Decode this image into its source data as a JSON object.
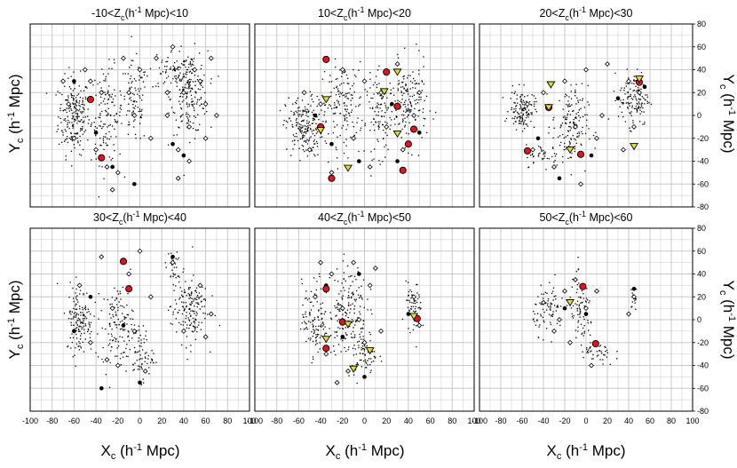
{
  "figure": {
    "x_axis_label": "X",
    "x_axis_label_sub": "c",
    "x_axis_label_unit": " (h",
    "x_axis_label_sup": "-1",
    "x_axis_label_end": " Mpc)",
    "y_axis_label": "Y",
    "y_axis_label_sub": "c",
    "y_axis_label_unit": " (h",
    "y_axis_label_sup": "-1",
    "y_axis_label_end": " Mpc)"
  },
  "colors": {
    "grid": "#c8c8c8",
    "frame": "#000000",
    "dots": "#000000",
    "circle_fill": "#e0141e",
    "triangle_fill": "#e3dc2c",
    "open_marker": "#000000"
  },
  "chart_data": [
    {
      "type": "scatter",
      "title": "-10<Z_c(h^-1 Mpc)<10",
      "title_parts": {
        "pre": "-10<Z",
        "sub": "c",
        "mid": "(h",
        "sup": "-1",
        "post": " Mpc)<10"
      },
      "xlim": [
        -100,
        100
      ],
      "ylim": [
        -80,
        80
      ],
      "xticks": [
        -100,
        -80,
        -60,
        -40,
        -20,
        0,
        20,
        40,
        60,
        80,
        100
      ],
      "yticks": [
        -80,
        -60,
        -40,
        -20,
        0,
        20,
        40,
        60,
        80
      ],
      "dot_clusters": [
        [
          -60,
          0,
          12,
          28,
          220
        ],
        [
          -30,
          0,
          12,
          35,
          130
        ],
        [
          -5,
          10,
          10,
          30,
          90
        ],
        [
          45,
          20,
          14,
          30,
          200
        ],
        [
          30,
          40,
          18,
          15,
          70
        ]
      ],
      "open_markers": [
        [
          -65,
          10
        ],
        [
          -60,
          -20
        ],
        [
          -50,
          40
        ],
        [
          -45,
          30
        ],
        [
          -40,
          -30
        ],
        [
          -35,
          20
        ],
        [
          -30,
          -45
        ],
        [
          -20,
          -50
        ],
        [
          -15,
          50
        ],
        [
          -10,
          20
        ],
        [
          0,
          40
        ],
        [
          10,
          -20
        ],
        [
          15,
          50
        ],
        [
          25,
          0
        ],
        [
          30,
          60
        ],
        [
          35,
          -30
        ],
        [
          40,
          20
        ],
        [
          45,
          -10
        ],
        [
          50,
          40
        ],
        [
          55,
          30
        ],
        [
          60,
          10
        ],
        [
          60,
          -20
        ],
        [
          65,
          50
        ],
        [
          70,
          0
        ],
        [
          -25,
          -65
        ],
        [
          -5,
          0
        ],
        [
          25,
          20
        ],
        [
          45,
          -40
        ],
        [
          35,
          -55
        ],
        [
          -70,
          30
        ]
      ],
      "filled_markers": [
        [
          -60,
          30
        ],
        [
          -40,
          -15
        ],
        [
          -25,
          -45
        ],
        [
          -5,
          -60
        ],
        [
          30,
          -25
        ],
        [
          40,
          -35
        ]
      ],
      "red_circles": [
        [
          -45,
          14
        ],
        [
          -35,
          -37
        ]
      ],
      "yellow_triangles": []
    },
    {
      "type": "scatter",
      "title": "10<Z_c(h^-1 Mpc)<20",
      "title_parts": {
        "pre": "10<Z",
        "sub": "c",
        "mid": "(h",
        "sup": "-1",
        "post": " Mpc)<20"
      },
      "xlim": [
        -100,
        100
      ],
      "ylim": [
        -80,
        80
      ],
      "xticks": [
        -100,
        -80,
        -60,
        -40,
        -20,
        0,
        20,
        40,
        60,
        80,
        100
      ],
      "yticks": [
        -80,
        -60,
        -40,
        -20,
        0,
        20,
        40,
        60,
        80
      ],
      "dot_clusters": [
        [
          -55,
          -10,
          14,
          22,
          200
        ],
        [
          -20,
          10,
          16,
          30,
          150
        ],
        [
          15,
          0,
          12,
          30,
          110
        ],
        [
          40,
          10,
          14,
          30,
          160
        ]
      ],
      "open_markers": [
        [
          -55,
          20
        ],
        [
          -50,
          -30
        ],
        [
          -40,
          10
        ],
        [
          -30,
          -50
        ],
        [
          -20,
          40
        ],
        [
          -10,
          -20
        ],
        [
          0,
          30
        ],
        [
          5,
          -45
        ],
        [
          20,
          -10
        ],
        [
          30,
          45
        ],
        [
          35,
          -30
        ],
        [
          45,
          0
        ],
        [
          50,
          20
        ],
        [
          15,
          20
        ]
      ],
      "filled_markers": [
        [
          -45,
          0
        ],
        [
          -30,
          -25
        ],
        [
          -5,
          -40
        ],
        [
          25,
          10
        ],
        [
          30,
          -40
        ],
        [
          50,
          -15
        ]
      ],
      "red_circles": [
        [
          -35,
          49
        ],
        [
          20,
          38
        ],
        [
          -30,
          -55
        ],
        [
          -40,
          -10
        ],
        [
          30,
          8
        ],
        [
          40,
          -25
        ],
        [
          35,
          -48
        ],
        [
          45,
          -12
        ]
      ],
      "yellow_triangles": [
        [
          -35,
          14
        ],
        [
          -40,
          -13
        ],
        [
          -15,
          -46
        ],
        [
          18,
          21
        ],
        [
          30,
          38
        ],
        [
          30,
          -16
        ]
      ]
    },
    {
      "type": "scatter",
      "title": "20<Z_c(h^-1 Mpc)<30",
      "title_parts": {
        "pre": "20<Z",
        "sub": "c",
        "mid": "(h",
        "sup": "-1",
        "post": " Mpc)<30"
      },
      "xlim": [
        -100,
        100
      ],
      "ylim": [
        -80,
        80
      ],
      "xticks": [
        -100,
        -80,
        -60,
        -40,
        -20,
        0,
        20,
        40,
        60,
        80,
        100
      ],
      "yticks": [
        -80,
        -60,
        -40,
        -20,
        0,
        20,
        40,
        60,
        80
      ],
      "dot_clusters": [
        [
          -60,
          5,
          10,
          14,
          130
        ],
        [
          -15,
          -10,
          14,
          30,
          150
        ],
        [
          45,
          15,
          12,
          20,
          130
        ],
        [
          -40,
          -35,
          14,
          8,
          40
        ]
      ],
      "open_markers": [
        [
          -55,
          10
        ],
        [
          -50,
          -30
        ],
        [
          -40,
          20
        ],
        [
          -30,
          -45
        ],
        [
          -20,
          30
        ],
        [
          -10,
          -10
        ],
        [
          0,
          40
        ],
        [
          10,
          -20
        ],
        [
          20,
          45
        ],
        [
          40,
          30
        ],
        [
          45,
          -10
        ],
        [
          50,
          20
        ],
        [
          -5,
          -60
        ],
        [
          15,
          0
        ],
        [
          35,
          -30
        ]
      ],
      "filled_markers": [
        [
          -45,
          -20
        ],
        [
          -25,
          -55
        ],
        [
          5,
          -35
        ],
        [
          30,
          15
        ],
        [
          55,
          25
        ]
      ],
      "red_circles": [
        [
          -55,
          -31
        ],
        [
          -35,
          7
        ],
        [
          -5,
          -34
        ],
        [
          50,
          29
        ]
      ],
      "yellow_triangles": [
        [
          -33,
          27
        ],
        [
          -35,
          7
        ],
        [
          -15,
          -30
        ],
        [
          50,
          32
        ],
        [
          45,
          -27
        ]
      ]
    },
    {
      "type": "scatter",
      "title": "30<Z_c(h^-1 Mpc)<40",
      "title_parts": {
        "pre": "30<Z",
        "sub": "c",
        "mid": "(h",
        "sup": "-1",
        "post": " Mpc)<40"
      },
      "xlim": [
        -100,
        100
      ],
      "ylim": [
        -80,
        80
      ],
      "xticks": [
        -100,
        -80,
        -60,
        -40,
        -20,
        0,
        20,
        40,
        60,
        80,
        100
      ],
      "yticks": [
        -80,
        -60,
        -40,
        -20,
        0,
        20,
        40,
        60,
        80
      ],
      "dot_clusters": [
        [
          -55,
          0,
          10,
          25,
          150
        ],
        [
          -20,
          -5,
          12,
          30,
          120
        ],
        [
          0,
          -30,
          10,
          20,
          70
        ],
        [
          45,
          10,
          14,
          25,
          170
        ],
        [
          30,
          45,
          6,
          12,
          30
        ]
      ],
      "open_markers": [
        [
          -55,
          30
        ],
        [
          -45,
          -20
        ],
        [
          -35,
          55
        ],
        [
          -25,
          10
        ],
        [
          -20,
          -40
        ],
        [
          -10,
          40
        ],
        [
          -5,
          -10
        ],
        [
          5,
          -45
        ],
        [
          10,
          20
        ],
        [
          30,
          50
        ],
        [
          40,
          -10
        ],
        [
          55,
          30
        ],
        [
          60,
          -15
        ],
        [
          65,
          5
        ],
        [
          -30,
          -35
        ],
        [
          0,
          60
        ]
      ],
      "filled_markers": [
        [
          -60,
          -10
        ],
        [
          -45,
          20
        ],
        [
          -35,
          -60
        ],
        [
          -15,
          -5
        ],
        [
          0,
          -55
        ],
        [
          30,
          55
        ]
      ],
      "red_circles": [
        [
          -15,
          51
        ],
        [
          -10,
          27
        ]
      ],
      "yellow_triangles": []
    },
    {
      "type": "scatter",
      "title": "40<Z_c(h^-1 Mpc)<50",
      "title_parts": {
        "pre": "40<Z",
        "sub": "c",
        "mid": "(h",
        "sup": "-1",
        "post": " Mpc)<50"
      },
      "xlim": [
        -100,
        100
      ],
      "ylim": [
        -80,
        80
      ],
      "xticks": [
        -100,
        -80,
        -60,
        -40,
        -20,
        0,
        20,
        40,
        60,
        80,
        100
      ],
      "yticks": [
        -80,
        -60,
        -40,
        -20,
        0,
        20,
        40,
        60,
        80
      ],
      "dot_clusters": [
        [
          -45,
          0,
          10,
          28,
          120
        ],
        [
          -15,
          10,
          14,
          32,
          170
        ],
        [
          0,
          -30,
          10,
          18,
          70
        ],
        [
          45,
          10,
          6,
          18,
          60
        ]
      ],
      "open_markers": [
        [
          -45,
          20
        ],
        [
          -35,
          -30
        ],
        [
          -30,
          40
        ],
        [
          -20,
          10
        ],
        [
          -15,
          -45
        ],
        [
          -10,
          50
        ],
        [
          0,
          -20
        ],
        [
          5,
          30
        ],
        [
          10,
          45
        ],
        [
          -5,
          0
        ],
        [
          45,
          20
        ],
        [
          50,
          -5
        ],
        [
          -40,
          50
        ],
        [
          15,
          -10
        ],
        [
          -25,
          -55
        ]
      ],
      "filled_markers": [
        [
          -35,
          30
        ],
        [
          -20,
          -15
        ],
        [
          -5,
          40
        ],
        [
          40,
          5
        ],
        [
          0,
          -50
        ]
      ],
      "red_circles": [
        [
          -35,
          27
        ],
        [
          -20,
          -2
        ],
        [
          -35,
          -25
        ],
        [
          48,
          1
        ]
      ],
      "yellow_triangles": [
        [
          -35,
          -17
        ],
        [
          -15,
          -4
        ],
        [
          5,
          -27
        ],
        [
          -10,
          -43
        ],
        [
          45,
          3
        ]
      ]
    },
    {
      "type": "scatter",
      "title": "50<Z_c(h^-1 Mpc)<60",
      "title_parts": {
        "pre": "50<Z",
        "sub": "c",
        "mid": "(h",
        "sup": "-1",
        "post": " Mpc)<60"
      },
      "xlim": [
        -100,
        100
      ],
      "ylim": [
        -80,
        80
      ],
      "xticks": [
        -100,
        -80,
        -60,
        -40,
        -20,
        0,
        20,
        40,
        60,
        80,
        100
      ],
      "yticks": [
        -80,
        -60,
        -40,
        -20,
        0,
        20,
        40,
        60,
        80
      ],
      "dot_clusters": [
        [
          -35,
          10,
          12,
          18,
          80
        ],
        [
          -5,
          5,
          10,
          25,
          80
        ],
        [
          10,
          -30,
          14,
          10,
          40
        ],
        [
          45,
          20,
          3,
          10,
          15
        ]
      ],
      "open_markers": [
        [
          -40,
          15
        ],
        [
          -30,
          -10
        ],
        [
          -20,
          25
        ],
        [
          -10,
          35
        ],
        [
          0,
          10
        ],
        [
          5,
          -40
        ],
        [
          -25,
          0
        ],
        [
          45,
          20
        ],
        [
          40,
          5
        ],
        [
          -15,
          -20
        ],
        [
          10,
          25
        ]
      ],
      "filled_markers": [
        [
          -20,
          10
        ],
        [
          0,
          5
        ],
        [
          45,
          27
        ]
      ],
      "red_circles": [
        [
          -3,
          29
        ],
        [
          9,
          -21
        ]
      ],
      "yellow_triangles": [
        [
          -15,
          15
        ]
      ]
    }
  ]
}
